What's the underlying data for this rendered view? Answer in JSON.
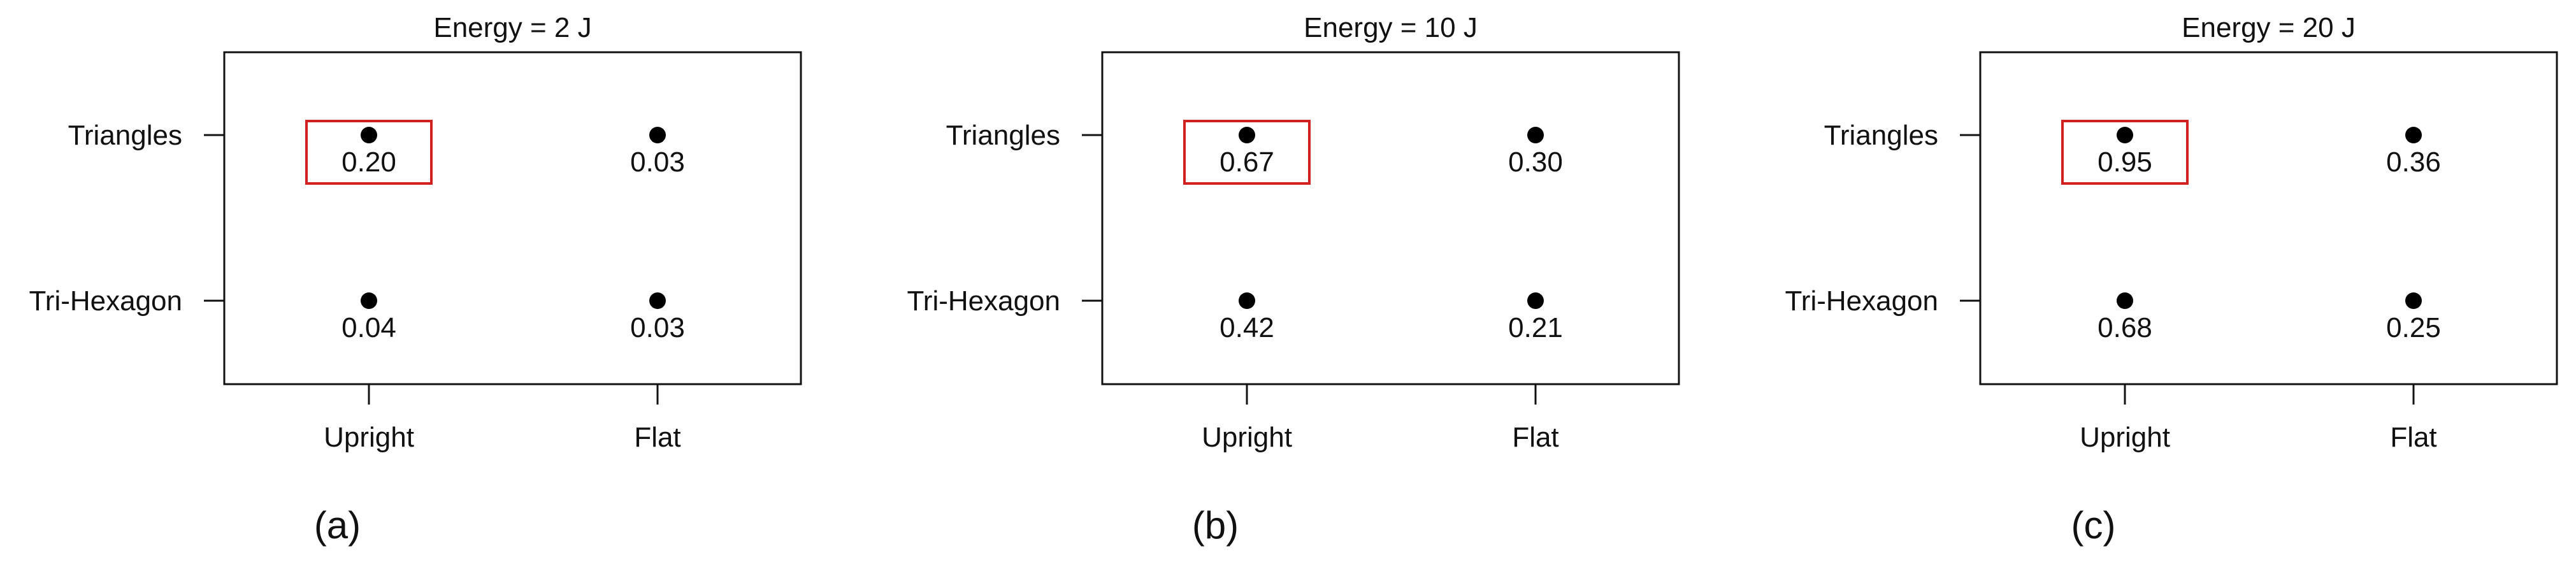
{
  "colors": {
    "frame": "#111111",
    "point": "#000000",
    "highlight": "#d0201f",
    "text": "#111111"
  },
  "chart_data": [
    {
      "type": "scatter",
      "title": "Energy = 2 J",
      "panel_label": "(a)",
      "x_categories": [
        "Upright",
        "Flat"
      ],
      "y_categories": [
        "Triangles",
        "Tri-Hexagon"
      ],
      "points": [
        {
          "x": "Upright",
          "y": "Triangles",
          "value": "0.20",
          "highlighted": true
        },
        {
          "x": "Flat",
          "y": "Triangles",
          "value": "0.03",
          "highlighted": false
        },
        {
          "x": "Upright",
          "y": "Tri-Hexagon",
          "value": "0.04",
          "highlighted": false
        },
        {
          "x": "Flat",
          "y": "Tri-Hexagon",
          "value": "0.03",
          "highlighted": false
        }
      ]
    },
    {
      "type": "scatter",
      "title": "Energy = 10 J",
      "panel_label": "(b)",
      "x_categories": [
        "Upright",
        "Flat"
      ],
      "y_categories": [
        "Triangles",
        "Tri-Hexagon"
      ],
      "points": [
        {
          "x": "Upright",
          "y": "Triangles",
          "value": "0.67",
          "highlighted": true
        },
        {
          "x": "Flat",
          "y": "Triangles",
          "value": "0.30",
          "highlighted": false
        },
        {
          "x": "Upright",
          "y": "Tri-Hexagon",
          "value": "0.42",
          "highlighted": false
        },
        {
          "x": "Flat",
          "y": "Tri-Hexagon",
          "value": "0.21",
          "highlighted": false
        }
      ]
    },
    {
      "type": "scatter",
      "title": "Energy = 20 J",
      "panel_label": "(c)",
      "x_categories": [
        "Upright",
        "Flat"
      ],
      "y_categories": [
        "Triangles",
        "Tri-Hexagon"
      ],
      "points": [
        {
          "x": "Upright",
          "y": "Triangles",
          "value": "0.95",
          "highlighted": true
        },
        {
          "x": "Flat",
          "y": "Triangles",
          "value": "0.36",
          "highlighted": false
        },
        {
          "x": "Upright",
          "y": "Tri-Hexagon",
          "value": "0.68",
          "highlighted": false
        },
        {
          "x": "Flat",
          "y": "Tri-Hexagon",
          "value": "0.25",
          "highlighted": false
        }
      ]
    }
  ]
}
